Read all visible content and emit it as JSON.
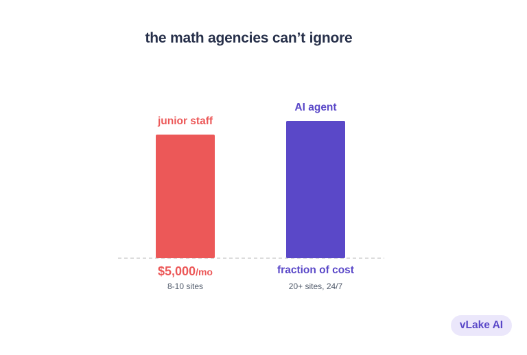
{
  "title": "the math agencies can’t ignore",
  "chart_data": {
    "type": "bar",
    "title": "the math agencies can’t ignore",
    "categories": [
      "junior staff",
      "AI agent"
    ],
    "values": [
      0.9,
      1.0
    ],
    "value_labels": [
      {
        "main": "$5,000",
        "unit": "/mo"
      },
      {
        "main": "fraction of cost",
        "unit": ""
      }
    ],
    "sub_labels": [
      "8-10 sites",
      "20+ sites, 24/7"
    ],
    "colors": [
      "#ec5858",
      "#5a48c8"
    ],
    "baseline_color": "#c8c8c8",
    "grid": false
  },
  "badge": {
    "label": "vLake AI"
  }
}
